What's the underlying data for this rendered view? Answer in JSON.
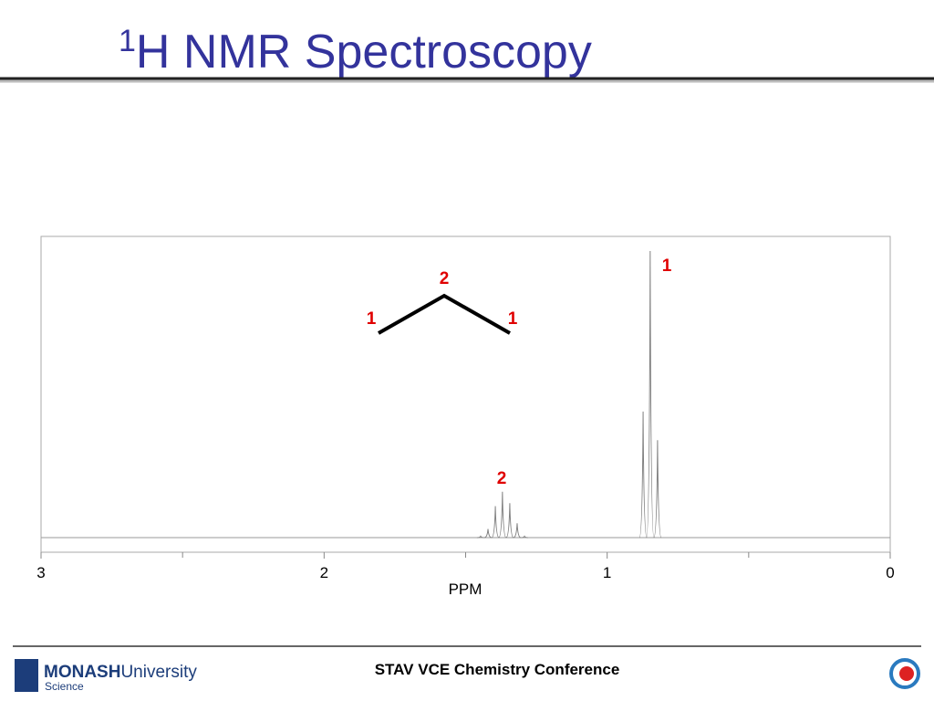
{
  "title_sup": "1",
  "title": "H NMR Spectroscopy",
  "chart_data": {
    "type": "spectrum",
    "x_label": "PPM",
    "xlim": [
      3,
      0
    ],
    "xticks": [
      3,
      2,
      1,
      0
    ],
    "xminor_ticks": [
      2.5,
      1.5,
      0.5
    ],
    "color": "#808080",
    "peaks": {
      "ppm": [
        1.447,
        1.421,
        1.395,
        1.37,
        1.344,
        1.318,
        1.292,
        0.873,
        0.848,
        0.822
      ],
      "height": [
        0.5,
        3,
        11,
        16,
        12,
        5,
        0.5,
        44,
        100,
        34
      ]
    },
    "peak_labels": [
      "1",
      "2"
    ]
  },
  "structure": {
    "labels": [
      "2",
      "1",
      "1"
    ]
  },
  "footer": {
    "logo": "MONASH",
    "logo_word": "University",
    "faculty": "Science",
    "conference": "STAV VCE Chemistry Conference"
  }
}
